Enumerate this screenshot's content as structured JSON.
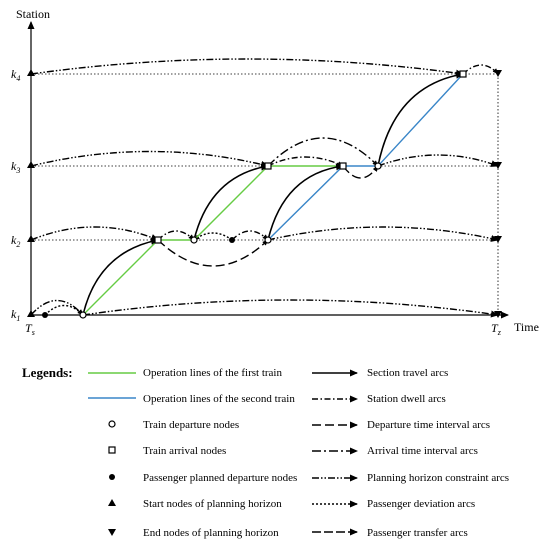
{
  "axes": {
    "y_label": "Station",
    "x_label": "Time",
    "stations": [
      {
        "name": "k",
        "sub": "1"
      },
      {
        "name": "k",
        "sub": "2"
      },
      {
        "name": "k",
        "sub": "3"
      },
      {
        "name": "k",
        "sub": "4"
      }
    ],
    "time_start": {
      "name": "T",
      "sub": "s"
    },
    "time_end": {
      "name": "T",
      "sub": "z"
    }
  },
  "legend": {
    "title": "Legends:",
    "items": {
      "first_train": "Operation lines of the first train",
      "second_train": "Operation lines of the second train",
      "departure_nodes": "Train departure nodes",
      "arrival_nodes": "Train arrival nodes",
      "passenger_nodes": "Passenger planned departure nodes",
      "start_nodes": "Start nodes of planning horizon",
      "end_nodes": "End nodes of planning horizon",
      "section_travel": "Section travel arcs",
      "station_dwell": "Station dwell arcs",
      "departure_interval": "Departure time interval arcs",
      "arrival_interval": "Arrival time interval arcs",
      "horizon_constraint": "Planning horizon constraint arcs",
      "passenger_deviation": "Passenger deviation arcs",
      "passenger_transfer": "Passenger transfer arcs"
    }
  },
  "colors": {
    "first_train": "#66cc44",
    "second_train": "#3a86c8",
    "ink": "#000000"
  }
}
